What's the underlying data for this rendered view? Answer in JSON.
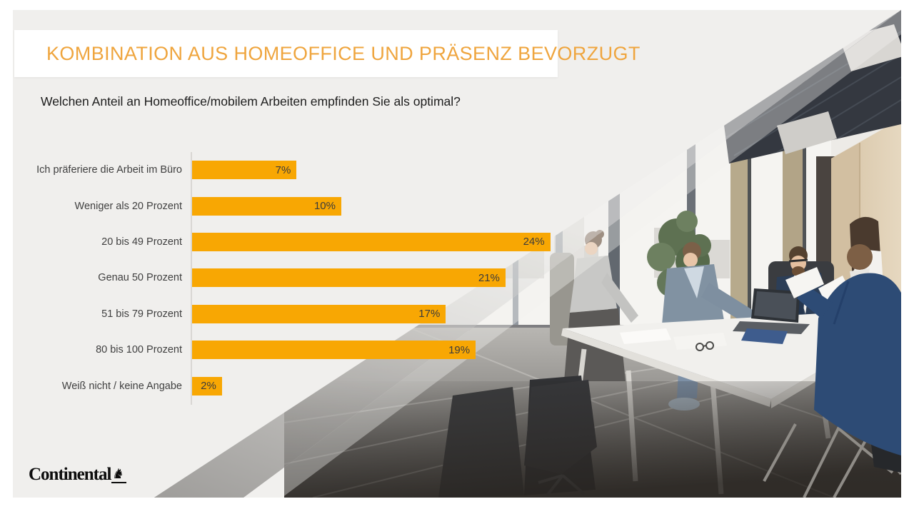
{
  "slide": {
    "title": "KOMBINATION AUS HOMEOFFICE UND PRÄSENZ BEVORZUGT",
    "question": "Welchen Anteil an Homeoffice/mobilem Arbeiten empfinden Sie als optimal?"
  },
  "chart_data": {
    "type": "bar",
    "orientation": "horizontal",
    "title": "Welchen Anteil an Homeoffice/mobilem Arbeiten empfinden Sie als optimal?",
    "categories": [
      "Ich präferiere die Arbeit im Büro",
      "Weniger als 20 Prozent",
      "20 bis 49 Prozent",
      "Genau 50 Prozent",
      "51 bis 79 Prozent",
      "80 bis 100 Prozent",
      "Weiß nicht / keine Angabe"
    ],
    "values": [
      7,
      10,
      24,
      21,
      17,
      19,
      2
    ],
    "value_labels": [
      "7%",
      "10%",
      "24%",
      "21%",
      "17%",
      "19%",
      "2%"
    ],
    "xlim": [
      0,
      25
    ],
    "grid": false,
    "legend": "none",
    "bar_color": "#F8A703",
    "value_label_position": "inside-end"
  },
  "brand": {
    "logo_text": "Continental",
    "horse_glyph": "♞",
    "horse_icon": "rearing-horse"
  },
  "colors": {
    "title_orange": "#EFA53E",
    "bar_orange": "#F8A703",
    "slide_bg": "#F0EFED",
    "text_dark": "#3F3F3F"
  }
}
